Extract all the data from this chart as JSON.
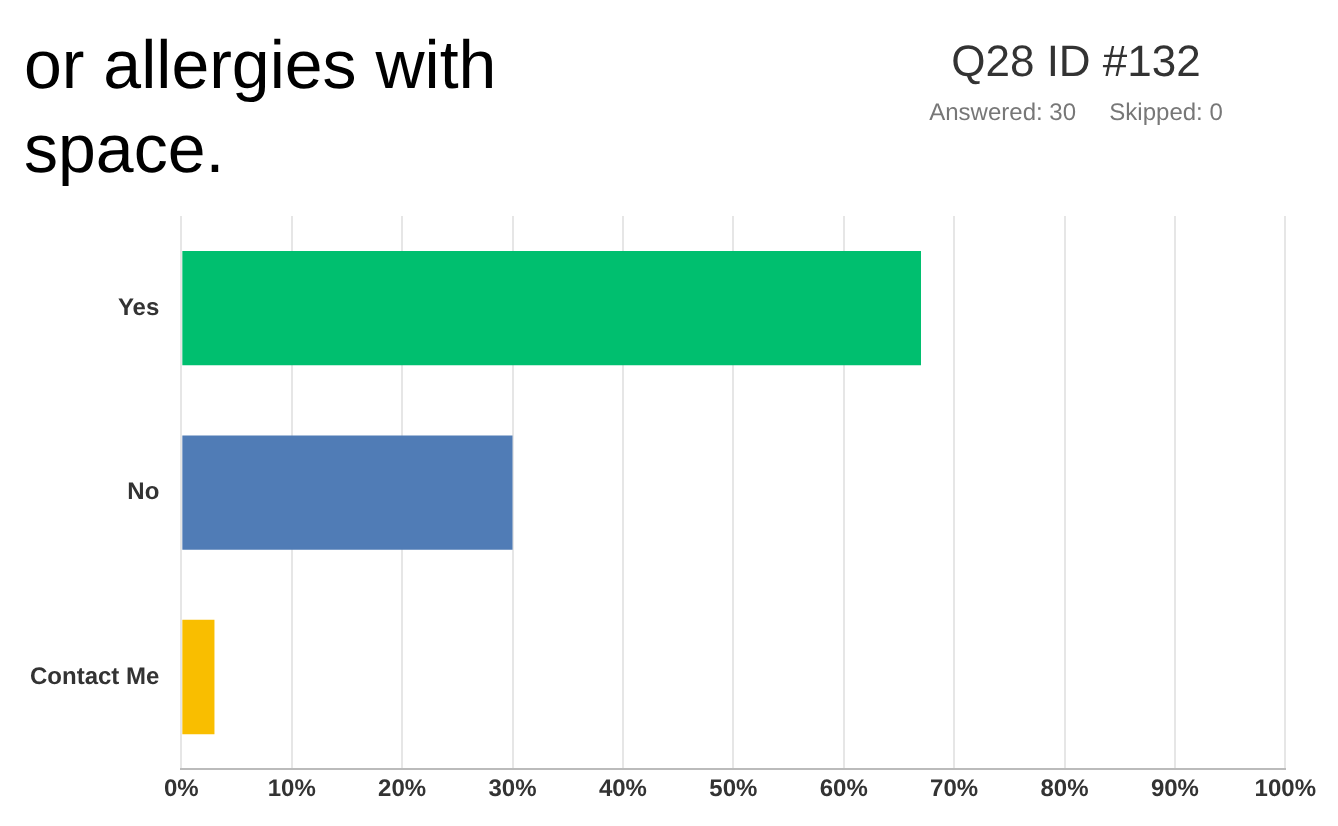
{
  "chart_data": {
    "type": "bar",
    "orientation": "horizontal",
    "title": "Q28 ID #132",
    "subtitle": "Answered: 30     Skipped: 0",
    "annotations": [
      "or allergies with",
      "space."
    ],
    "categories": [
      "Yes",
      "No",
      "Contact Me"
    ],
    "values": [
      67,
      30,
      3
    ],
    "colors": [
      "#00bf6f",
      "#507cb6",
      "#f9be00"
    ],
    "xlim": [
      0,
      100
    ],
    "xticks": [
      {
        "value": 0,
        "label": "0%"
      },
      {
        "value": 10,
        "label": "10%"
      },
      {
        "value": 20,
        "label": "20%"
      },
      {
        "value": 30,
        "label": "30%"
      },
      {
        "value": 40,
        "label": "40%"
      },
      {
        "value": 50,
        "label": "50%"
      },
      {
        "value": 60,
        "label": "60%"
      },
      {
        "value": 70,
        "label": "70%"
      },
      {
        "value": 80,
        "label": "80%"
      },
      {
        "value": 90,
        "label": "90%"
      },
      {
        "value": 100,
        "label": "100%"
      }
    ],
    "grid": "x",
    "legend": false
  }
}
